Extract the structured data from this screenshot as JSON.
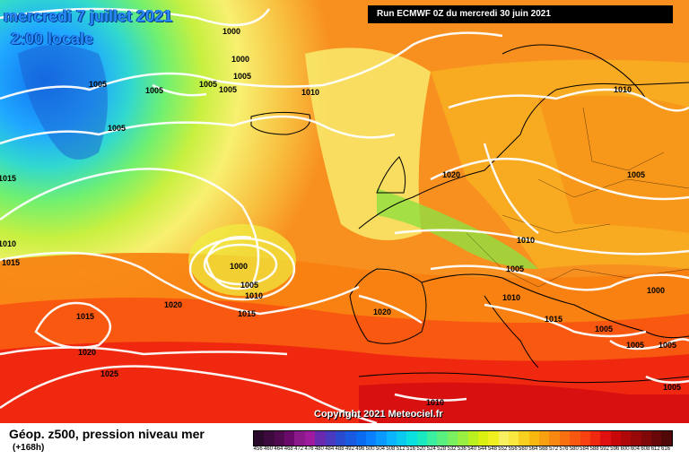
{
  "map": {
    "title_line1": "mercredi 7 juillet 2021",
    "title_line2": "2:00 locale",
    "run_info": "Run ECMWF 0Z du mercredi 30 juin 2021",
    "copyright": "Copyright 2021 Meteociel.fr",
    "pressure_labels": [
      "1000",
      "1005",
      "1005",
      "1005",
      "1000",
      "1005",
      "1005",
      "1010",
      "1015",
      "1010",
      "1015",
      "1005",
      "1000",
      "1005",
      "1010",
      "1015",
      "1020",
      "1015",
      "1020",
      "1025",
      "1020",
      "1010",
      "1020",
      "1005",
      "1010",
      "1005",
      "1010",
      "1015",
      "1000",
      "1005",
      "1005",
      "1005",
      "1005",
      "1010"
    ]
  },
  "legend": {
    "title": "Géop. z500, pression niveau mer",
    "subtitle": "(+168h)",
    "scale_values": [
      "456",
      "460",
      "464",
      "468",
      "472",
      "476",
      "480",
      "484",
      "488",
      "492",
      "496",
      "500",
      "504",
      "508",
      "512",
      "516",
      "520",
      "524",
      "528",
      "532",
      "536",
      "540",
      "544",
      "548",
      "552",
      "556",
      "560",
      "564",
      "568",
      "572",
      "576",
      "580",
      "584",
      "588",
      "592",
      "596",
      "600",
      "604",
      "608",
      "612",
      "616"
    ],
    "scale_colors": [
      "#2a0a2a",
      "#3c0a3c",
      "#500a50",
      "#6a0a6a",
      "#8a1a8a",
      "#a01aa0",
      "#6a2ab0",
      "#4a3ac0",
      "#2a4ad0",
      "#1a5ae0",
      "#0a6af0",
      "#0a80ff",
      "#0a9aff",
      "#0ab4ff",
      "#0acaf0",
      "#0ae0e0",
      "#1ae8c0",
      "#3af0a0",
      "#5af080",
      "#7af060",
      "#9af040",
      "#baf020",
      "#daf010",
      "#f0f020",
      "#f8f060",
      "#f8e840",
      "#f8d020",
      "#f8b810",
      "#f8a010",
      "#f88810",
      "#f87010",
      "#f85810",
      "#f84010",
      "#f02810",
      "#e01010",
      "#c80808",
      "#b00808",
      "#980808",
      "#800808",
      "#680808",
      "#500808"
    ]
  }
}
